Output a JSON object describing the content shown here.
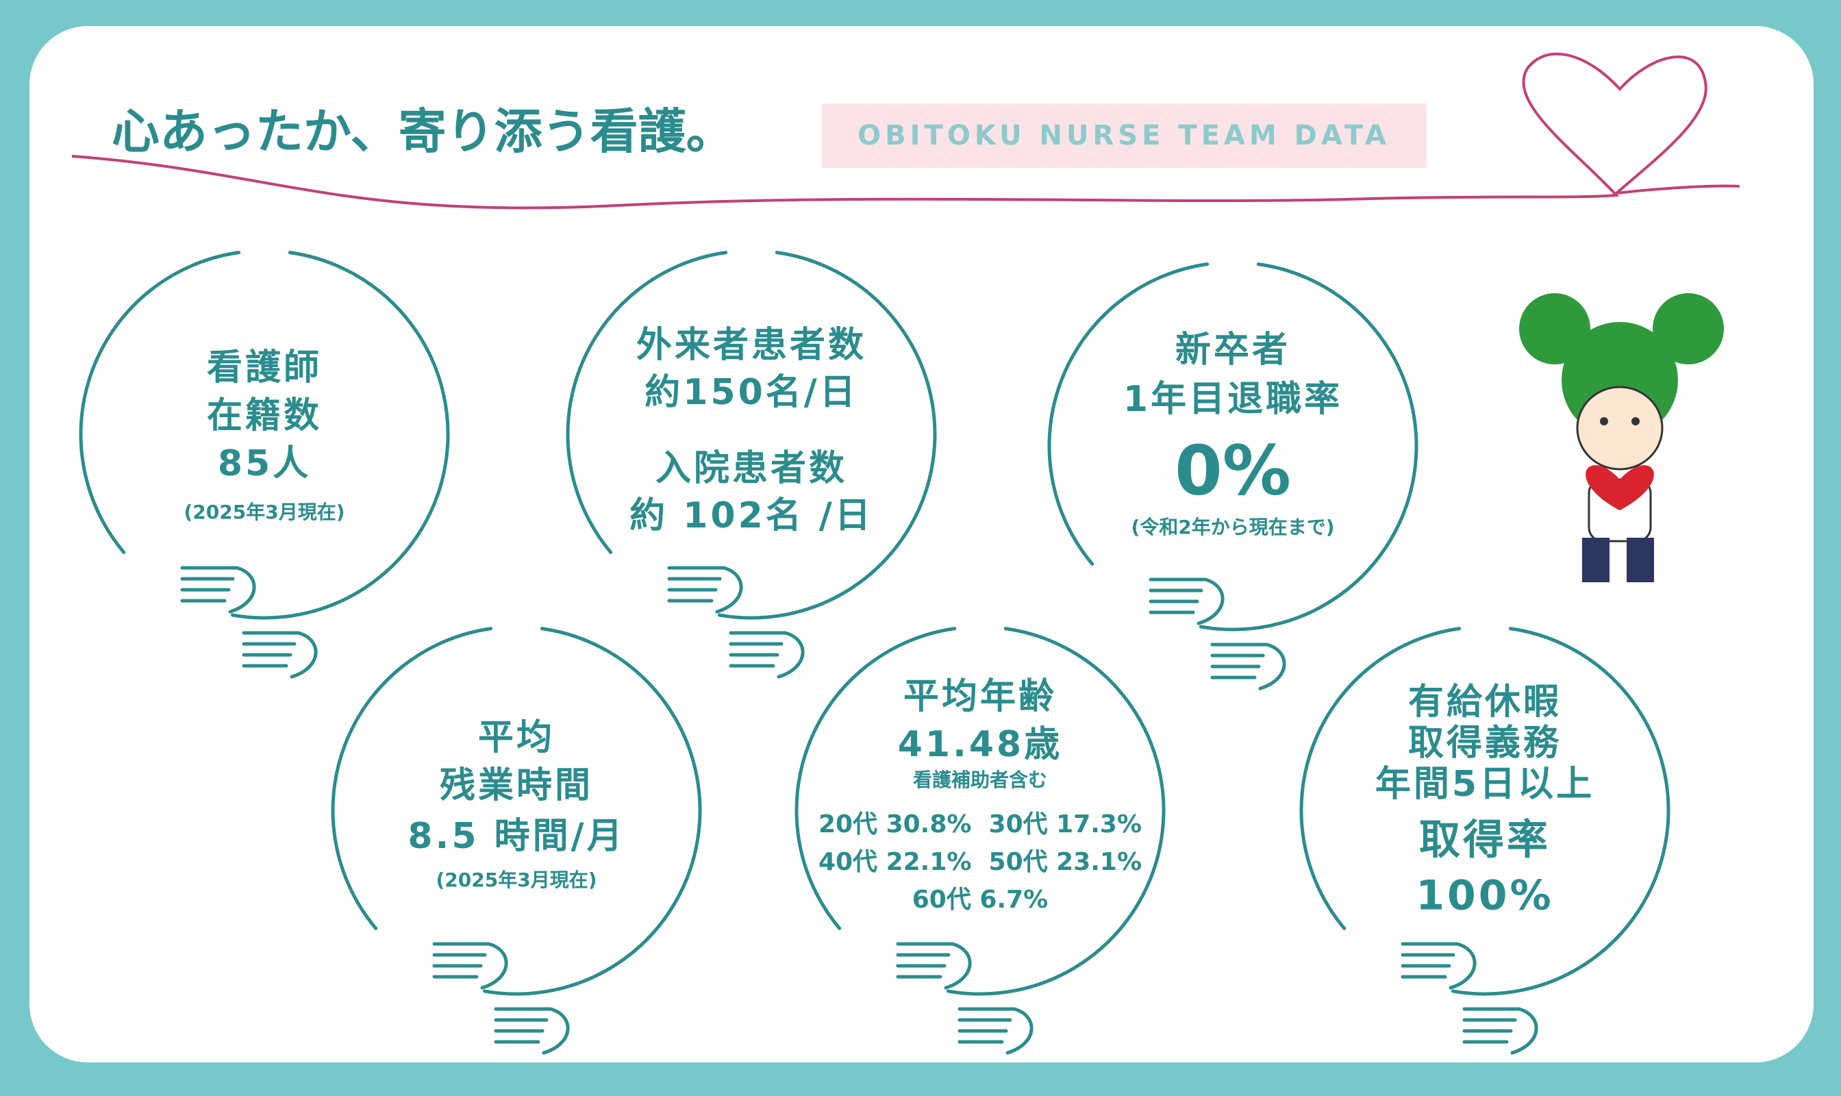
{
  "header": {
    "title": "心あったか、寄り添う看護。",
    "badge": "OBITOKU NURSE TEAM DATA"
  },
  "circles": [
    {
      "lines": [
        "看護師",
        "在籍数",
        "85人",
        "(2025年3月現在)"
      ]
    },
    {
      "lines": [
        "外来者患者数",
        "約150名/日",
        "入院患者数",
        "約 102名 /日"
      ]
    },
    {
      "lines": [
        "新卒者",
        "1年目退職率",
        "0%",
        "(令和2年から現在まで)"
      ]
    },
    {
      "lines": [
        "平均",
        "残業時間",
        "8.5 時間/月",
        "(2025年3月現在)"
      ]
    },
    {
      "lines": [
        "平均年齢",
        "41.48歳",
        "看護補助者含む",
        "20代 30.8%  30代 17.3%",
        "40代 22.1%  50代 23.1%",
        "60代 6.7%"
      ]
    },
    {
      "lines": [
        "有給休暇",
        "取得義務",
        "年間5日以上",
        "取得率",
        "100%"
      ]
    }
  ]
}
